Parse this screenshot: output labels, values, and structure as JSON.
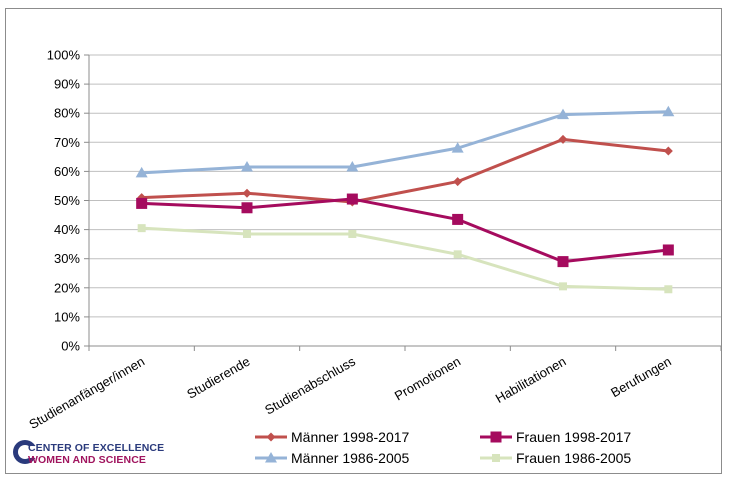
{
  "chart_data": {
    "type": "line",
    "categories": [
      "Studienanfänger/innen",
      "Studierende",
      "Studienabschluss",
      "Promotionen",
      "Habilitationen",
      "Berufungen"
    ],
    "ylim": [
      0,
      100
    ],
    "yticks": [
      "0%",
      "10%",
      "20%",
      "30%",
      "40%",
      "50%",
      "60%",
      "70%",
      "80%",
      "90%",
      "100%"
    ],
    "grid": true,
    "legend_position": "bottom",
    "series": [
      {
        "name": "Männer 1998-2017",
        "color": "#c0504d",
        "marker": "diamond",
        "values": [
          51,
          52.5,
          49.5,
          56.5,
          71,
          67
        ]
      },
      {
        "name": "Frauen 1998-2017",
        "color": "#a50b5e",
        "marker": "square",
        "values": [
          49,
          47.5,
          50.5,
          43.5,
          29,
          33
        ]
      },
      {
        "name": "Männer 1986-2005",
        "color": "#95b3d7",
        "marker": "triangle",
        "values": [
          59.5,
          61.5,
          61.5,
          68,
          79.5,
          80.5
        ]
      },
      {
        "name": "Frauen 1986-2005",
        "color": "#d7e4bd",
        "marker": "square-small",
        "values": [
          40.5,
          38.5,
          38.5,
          31.5,
          20.5,
          19.5
        ]
      }
    ]
  },
  "logo": {
    "line1": "CENTER OF EXCELLENCE",
    "line2": "WOMEN AND SCIENCE",
    "colors": {
      "primary": "#2a3a7c",
      "accent": "#a0145e"
    }
  }
}
